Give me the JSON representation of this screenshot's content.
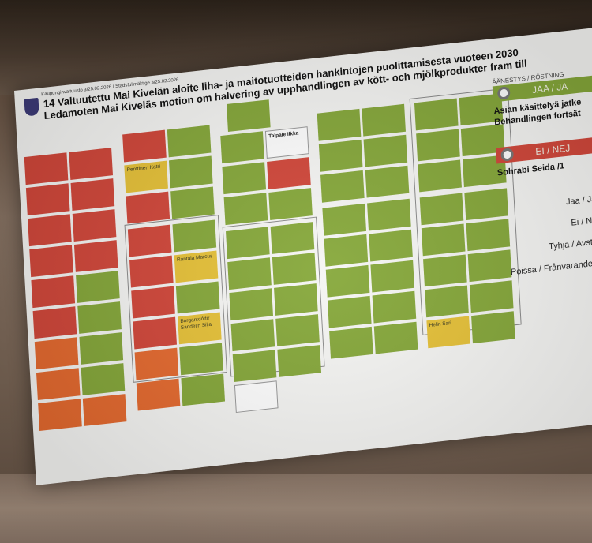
{
  "header": {
    "meta": "Kaupunginvaltuusto 3/25.02.2026 / Stadsfullmäktige 3/25.02.2026",
    "title": "14 Valtuutettu Mai Kivelän aloite liha- ja maitotuotteiden hankintojen puolittamisesta vuoteen 2030",
    "subtitle": "Ledamoten Mai Kiveläs motion om halvering av upphandlingen av kött- och mjölkprodukter fram till"
  },
  "panel": {
    "heading": "ÄÄNESTYS / RÖSTNING",
    "jaa_label": "JAA / JA",
    "jaa_text1": "Asian käsittelyä jatke",
    "jaa_text2": "Behandlingen fortsät",
    "ei_label": "EI / NEJ",
    "ei_text": "Sohrabi Seida /1",
    "jaa_count_label": "Jaa / Ja",
    "ei_count_label": "Ei / Nej",
    "tyhja_label": "Tyhjä / Avstår",
    "poissa_label": "Poissa / Frånvarande"
  },
  "colors": {
    "jaa": "#86a83a",
    "ei": "#d2473a",
    "tyhja": "#e7c238",
    "poissa": "#ffffff"
  },
  "cells": {
    "c1": [
      "Rantala Marcus",
      "Borgarsdóttir Sandelin Silja",
      "Penttinen Katri",
      "Talpale Ilkka",
      "Helin Sari"
    ]
  }
}
